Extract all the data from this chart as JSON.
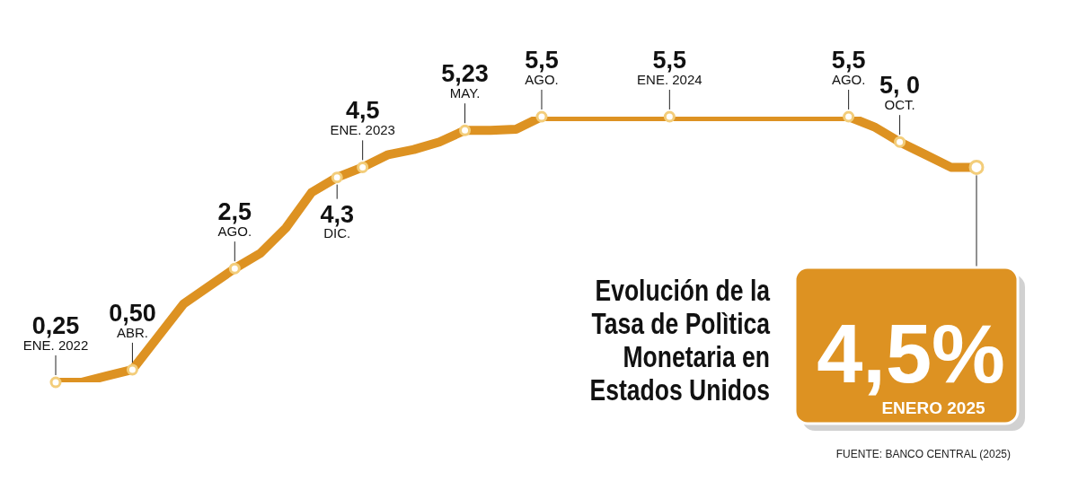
{
  "chart_data": {
    "type": "line",
    "title": "Evolución de la Tasa de Polìtica Monetaria en Estados Unidos",
    "categories": [
      null,
      null,
      null,
      null,
      null,
      null,
      null,
      null,
      null,
      null,
      null,
      null,
      null,
      null,
      null,
      null,
      null,
      null,
      null,
      null,
      null,
      null,
      null,
      null,
      null,
      null,
      null,
      null,
      null,
      null,
      null,
      null,
      null,
      null,
      null,
      null,
      null
    ],
    "tick_labels": false,
    "line_style": "solid",
    "series": [
      {
        "color": "#dd9222",
        "values": [
          0.25,
          0.25,
          0.375,
          0.5,
          1.15,
          1.8,
          2.15,
          2.5,
          2.8,
          3.3,
          4.0,
          4.3,
          4.5,
          4.75,
          4.85,
          5.0,
          5.23,
          5.23,
          5.25,
          5.5,
          5.5,
          5.5,
          5.5,
          5.5,
          5.5,
          5.5,
          5.5,
          5.5,
          5.5,
          5.5,
          5.5,
          5.5,
          5.3,
          5.0,
          4.75,
          4.5,
          4.5
        ],
        "value_labels": [
          "0,25",
          null,
          null,
          "0,50",
          null,
          null,
          null,
          "2,5",
          null,
          null,
          null,
          "4,3",
          "4,5",
          null,
          null,
          null,
          "5,23",
          null,
          null,
          "5,5",
          null,
          null,
          null,
          null,
          "5,5",
          null,
          null,
          null,
          null,
          null,
          null,
          "5,5",
          null,
          "5, 0",
          null,
          null,
          "4,5%"
        ]
      }
    ],
    "annotations": [
      "ENE. 2022",
      "ABR.",
      "AGO.",
      "DIC.",
      "ENE. 2023",
      "MAY.",
      "AGO.",
      "ENE. 2024",
      "AGO.",
      "OCT.",
      "ENERO 2025",
      "FUENTE: BANCO CENTRAL (2025)"
    ]
  }
}
